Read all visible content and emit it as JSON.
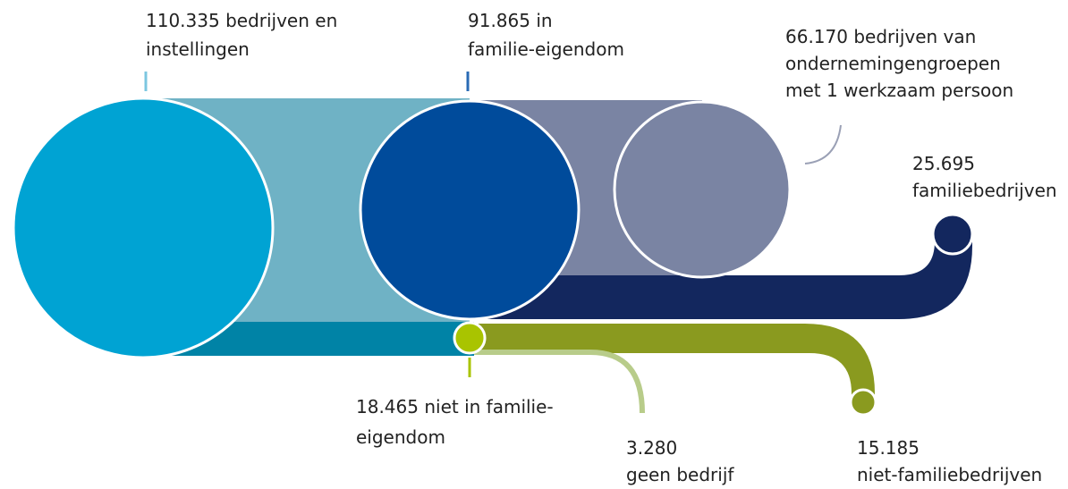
{
  "labels": [
    {
      "lines": [
        "110.335 bedrijven en",
        "instellingen"
      ]
    },
    {
      "lines": [
        "91.865 in",
        "familie-eigendom"
      ]
    },
    {
      "lines": [
        "66.170 bedrijven van",
        "ondernemingengroepen",
        "met 1 werkzaam persoon"
      ]
    },
    {
      "lines": [
        "25.695",
        "familiebedrijven"
      ]
    },
    {
      "lines": [
        "18.465 niet in familie-",
        "eigendom"
      ]
    },
    {
      "lines": [
        "3.280",
        "geen bedrijf"
      ]
    },
    {
      "lines": [
        "15.185",
        "niet-familiebedrijven"
      ]
    }
  ]
}
